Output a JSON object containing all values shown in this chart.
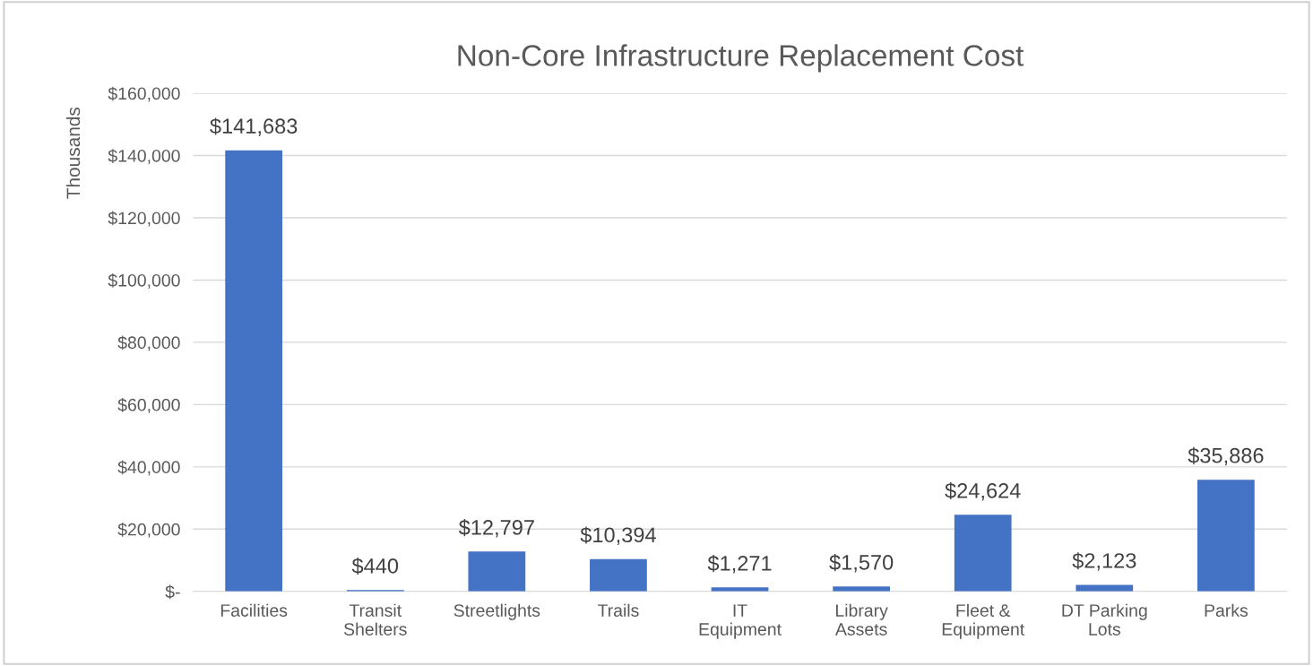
{
  "chart_data": {
    "type": "bar",
    "title": "Non-Core Infrastructure Replacement Cost",
    "ylabel": "Thousands",
    "categories": [
      "Facilities",
      "Transit\nShelters",
      "Streetlights",
      "Trails",
      "IT\nEquipment",
      "Library\nAssets",
      "Fleet &\nEquipment",
      "DT Parking\nLots",
      "Parks"
    ],
    "values": [
      141683,
      440,
      12797,
      10394,
      1271,
      1570,
      24624,
      2123,
      35886
    ],
    "value_labels": [
      "$141,683",
      "$440",
      "$12,797",
      "$10,394",
      "$1,271",
      "$1,570",
      "$24,624",
      "$2,123",
      "$35,886"
    ],
    "color": "#4472c4",
    "ylim": [
      0,
      160000
    ],
    "yticks": [
      {
        "value": 0,
        "label": "$-"
      },
      {
        "value": 20000,
        "label": "$20,000"
      },
      {
        "value": 40000,
        "label": "$40,000"
      },
      {
        "value": 60000,
        "label": "$60,000"
      },
      {
        "value": 80000,
        "label": "$80,000"
      },
      {
        "value": 100000,
        "label": "$100,000"
      },
      {
        "value": 120000,
        "label": "$120,000"
      },
      {
        "value": 140000,
        "label": "$140,000"
      },
      {
        "value": 160000,
        "label": "$160,000"
      }
    ],
    "grid": "y"
  }
}
